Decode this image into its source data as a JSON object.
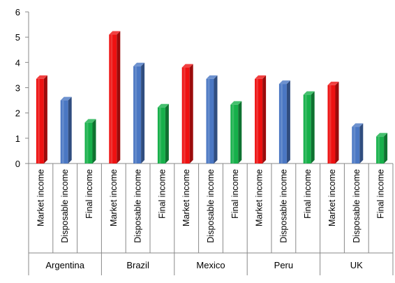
{
  "chart_data": {
    "type": "bar",
    "style": "3d-cylinder-bars",
    "groups": [
      {
        "name": "Argentina",
        "bars": [
          {
            "label": "Market income",
            "value": 3.35,
            "color": "#ee1111"
          },
          {
            "label": "Disposable income",
            "value": 2.5,
            "color": "#4a77c3"
          },
          {
            "label": "Final income",
            "value": 1.62,
            "color": "#16b04a"
          }
        ]
      },
      {
        "name": "Brazil",
        "bars": [
          {
            "label": "Market income",
            "value": 5.1,
            "color": "#ee1111"
          },
          {
            "label": "Disposable income",
            "value": 3.85,
            "color": "#4a77c3"
          },
          {
            "label": "Final income",
            "value": 2.22,
            "color": "#16b04a"
          }
        ]
      },
      {
        "name": "Mexico",
        "bars": [
          {
            "label": "Market income",
            "value": 3.8,
            "color": "#ee1111"
          },
          {
            "label": "Disposable income",
            "value": 3.35,
            "color": "#4a77c3"
          },
          {
            "label": "Final income",
            "value": 2.33,
            "color": "#16b04a"
          }
        ]
      },
      {
        "name": "Peru",
        "bars": [
          {
            "label": "Market income",
            "value": 3.35,
            "color": "#ee1111"
          },
          {
            "label": "Disposable income",
            "value": 3.15,
            "color": "#4a77c3"
          },
          {
            "label": "Final income",
            "value": 2.72,
            "color": "#16b04a"
          }
        ]
      },
      {
        "name": "UK",
        "bars": [
          {
            "label": "Market income",
            "value": 3.1,
            "color": "#ee1111"
          },
          {
            "label": "Disposable income",
            "value": 1.45,
            "color": "#4a77c3"
          },
          {
            "label": "Final income",
            "value": 1.07,
            "color": "#16b04a"
          }
        ]
      }
    ],
    "y_ticks": [
      "0",
      "1",
      "2",
      "3",
      "4",
      "5",
      "6"
    ],
    "ylim": [
      0,
      6
    ],
    "grid": false,
    "legend": "none"
  }
}
